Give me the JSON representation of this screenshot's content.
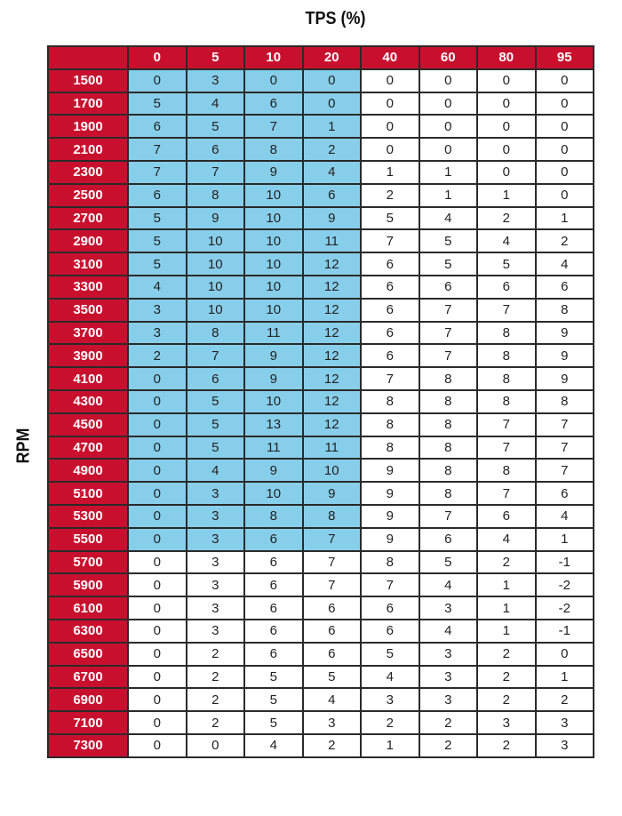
{
  "chart_data": {
    "type": "table",
    "xlabel": "TPS (%)",
    "ylabel": "RPM",
    "columns": [
      "0",
      "5",
      "10",
      "20",
      "40",
      "60",
      "80",
      "95"
    ],
    "rows": [
      {
        "rpm": "1500",
        "values": [
          0,
          3,
          0,
          0,
          0,
          0,
          0,
          0
        ]
      },
      {
        "rpm": "1700",
        "values": [
          5,
          4,
          6,
          0,
          0,
          0,
          0,
          0
        ]
      },
      {
        "rpm": "1900",
        "values": [
          6,
          5,
          7,
          1,
          0,
          0,
          0,
          0
        ]
      },
      {
        "rpm": "2100",
        "values": [
          7,
          6,
          8,
          2,
          0,
          0,
          0,
          0
        ]
      },
      {
        "rpm": "2300",
        "values": [
          7,
          7,
          9,
          4,
          1,
          1,
          0,
          0
        ]
      },
      {
        "rpm": "2500",
        "values": [
          6,
          8,
          10,
          6,
          2,
          1,
          1,
          0
        ]
      },
      {
        "rpm": "2700",
        "values": [
          5,
          9,
          10,
          9,
          5,
          4,
          2,
          1
        ]
      },
      {
        "rpm": "2900",
        "values": [
          5,
          10,
          10,
          11,
          7,
          5,
          4,
          2
        ]
      },
      {
        "rpm": "3100",
        "values": [
          5,
          10,
          10,
          12,
          6,
          5,
          5,
          4
        ]
      },
      {
        "rpm": "3300",
        "values": [
          4,
          10,
          10,
          12,
          6,
          6,
          6,
          6
        ]
      },
      {
        "rpm": "3500",
        "values": [
          3,
          10,
          10,
          12,
          6,
          7,
          7,
          8
        ]
      },
      {
        "rpm": "3700",
        "values": [
          3,
          8,
          11,
          12,
          6,
          7,
          8,
          9
        ]
      },
      {
        "rpm": "3900",
        "values": [
          2,
          7,
          9,
          12,
          6,
          7,
          8,
          9
        ]
      },
      {
        "rpm": "4100",
        "values": [
          0,
          6,
          9,
          12,
          7,
          8,
          8,
          9
        ]
      },
      {
        "rpm": "4300",
        "values": [
          0,
          5,
          10,
          12,
          8,
          8,
          8,
          8
        ]
      },
      {
        "rpm": "4500",
        "values": [
          0,
          5,
          13,
          12,
          8,
          8,
          7,
          7
        ]
      },
      {
        "rpm": "4700",
        "values": [
          0,
          5,
          11,
          11,
          8,
          8,
          7,
          7
        ]
      },
      {
        "rpm": "4900",
        "values": [
          0,
          4,
          9,
          10,
          9,
          8,
          8,
          7
        ]
      },
      {
        "rpm": "5100",
        "values": [
          0,
          3,
          10,
          9,
          9,
          8,
          7,
          6
        ]
      },
      {
        "rpm": "5300",
        "values": [
          0,
          3,
          8,
          8,
          9,
          7,
          6,
          4
        ]
      },
      {
        "rpm": "5500",
        "values": [
          0,
          3,
          6,
          7,
          9,
          6,
          4,
          1
        ]
      },
      {
        "rpm": "5700",
        "values": [
          0,
          3,
          6,
          7,
          8,
          5,
          2,
          -1
        ]
      },
      {
        "rpm": "5900",
        "values": [
          0,
          3,
          6,
          7,
          7,
          4,
          1,
          -2
        ]
      },
      {
        "rpm": "6100",
        "values": [
          0,
          3,
          6,
          6,
          6,
          3,
          1,
          -2
        ]
      },
      {
        "rpm": "6300",
        "values": [
          0,
          3,
          6,
          6,
          6,
          4,
          1,
          -1
        ]
      },
      {
        "rpm": "6500",
        "values": [
          0,
          2,
          6,
          6,
          5,
          3,
          2,
          0
        ]
      },
      {
        "rpm": "6700",
        "values": [
          0,
          2,
          5,
          5,
          4,
          3,
          2,
          1
        ]
      },
      {
        "rpm": "6900",
        "values": [
          0,
          2,
          5,
          4,
          3,
          3,
          2,
          2
        ]
      },
      {
        "rpm": "7100",
        "values": [
          0,
          2,
          5,
          3,
          2,
          2,
          3,
          3
        ]
      },
      {
        "rpm": "7300",
        "values": [
          0,
          0,
          4,
          2,
          1,
          2,
          2,
          3
        ]
      }
    ],
    "highlight": {
      "columns": [
        "0",
        "5",
        "10",
        "20"
      ],
      "rpm_from": "1500",
      "rpm_to": "5500",
      "color": "#87ceeb"
    },
    "header_color": "#c8102e"
  }
}
